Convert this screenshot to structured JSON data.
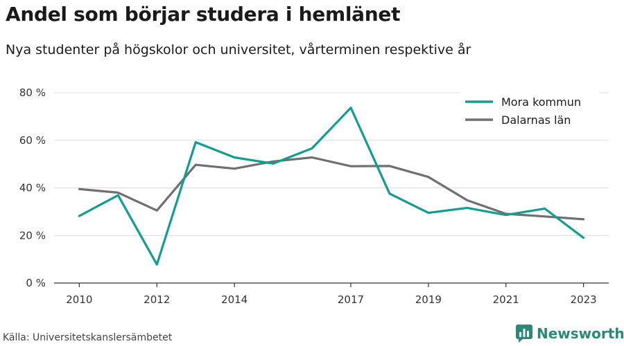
{
  "chart_data": {
    "type": "line",
    "title": "Andel som börjar studera i hemlänet",
    "subtitle": "Nya studenter på högskolor och universitet, vårterminen respektive år",
    "x": [
      2010,
      2011,
      2012,
      2013,
      2014,
      2015,
      2016,
      2017,
      2018,
      2019,
      2020,
      2021,
      2022,
      2023
    ],
    "x_tick_labels": [
      "2010",
      "2012",
      "2014",
      "2017",
      "2019",
      "2021",
      "2023"
    ],
    "x_ticks": [
      2010,
      2012,
      2014,
      2017,
      2019,
      2021,
      2023
    ],
    "y_tick_labels": [
      "0 %",
      "20 %",
      "40 %",
      "60 %",
      "80 %"
    ],
    "y_ticks": [
      0,
      20,
      40,
      60,
      80
    ],
    "ylim": [
      0,
      80
    ],
    "xlabel": "",
    "ylabel": "",
    "grid": true,
    "legend_position": "top-right",
    "series": [
      {
        "name": "Mora kommun",
        "color": "#0f9e91",
        "values": [
          28.2,
          36.9,
          7.8,
          59.2,
          52.8,
          50.2,
          56.6,
          73.7,
          37.6,
          29.5,
          31.6,
          28.6,
          31.3,
          19.0
        ]
      },
      {
        "name": "Dalarnas län",
        "color": "#6e6e73",
        "values": [
          39.5,
          38.0,
          30.5,
          49.7,
          48.1,
          51.1,
          52.8,
          49.1,
          49.2,
          44.6,
          34.8,
          29.1,
          28.0,
          26.8
        ]
      }
    ]
  },
  "footer": {
    "source": "Källa: Universitetskanslersämbetet",
    "brand": "Newsworthy",
    "brand_color": "#2a8a78",
    "brand_icon": "bar-chart-icon"
  }
}
